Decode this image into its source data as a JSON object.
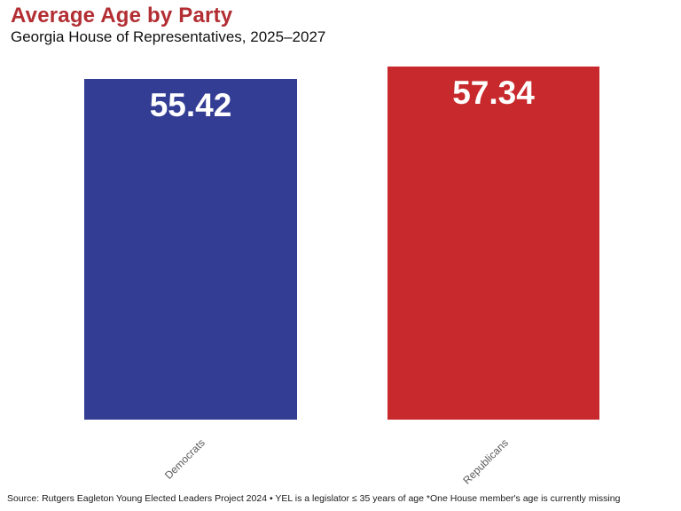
{
  "header": {
    "title": "Average Age by Party",
    "subtitle": "Georgia House of Representatives, 2025–2027"
  },
  "chart_data": {
    "type": "bar",
    "title": "Average Age by Party",
    "subtitle": "Georgia House of Representatives, 2025–2027",
    "categories": [
      "Democrats",
      "Republicans"
    ],
    "values": [
      55.42,
      57.34
    ],
    "value_labels": [
      "55.42",
      "57.34"
    ],
    "bar_colors": [
      "#333d94",
      "#c8292c"
    ],
    "xlabel": "",
    "ylabel": "",
    "ylim": [
      0,
      60
    ],
    "grid": false,
    "legend": false,
    "value_label_position": "inside-top",
    "value_label_color": "#ffffff"
  },
  "footer": {
    "source": "Source: Rutgers Eagleton Young Elected Leaders Project 2024 • YEL is a legislator ≤ 35 years of age *One House member's age is currently missing"
  },
  "colors": {
    "title": "#b22e33",
    "subtitle": "#111111",
    "category_label": "#5c5c5c",
    "source_text": "#1a1a1a",
    "background": "#ffffff"
  }
}
